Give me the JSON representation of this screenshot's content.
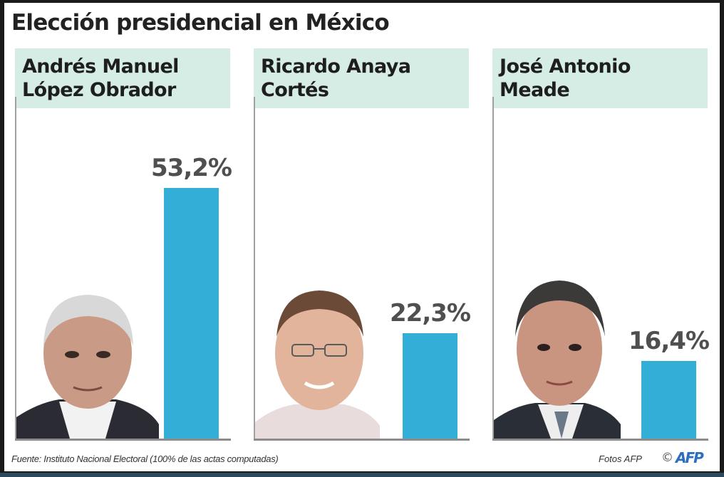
{
  "title": "Elección presidencial en México",
  "chart_data": {
    "type": "bar",
    "title": "Elección presidencial en México",
    "categories": [
      "Andrés Manuel López Obrador",
      "Ricardo Anaya Cortés",
      "José Antonio Meade"
    ],
    "values": [
      53.2,
      22.3,
      16.4
    ],
    "value_labels": [
      "53,2%",
      "22,3%",
      "16,4%"
    ],
    "unit": "%",
    "ylim": [
      0,
      100
    ],
    "grid": false,
    "bar_color": "#33aed6"
  },
  "candidates": [
    {
      "name_line1": "Andrés Manuel",
      "name_line2": "López Obrador",
      "value_label": "53,2%",
      "value": 53.2
    },
    {
      "name_line1": "Ricardo Anaya",
      "name_line2": "Cortés",
      "value_label": "22,3%",
      "value": 22.3
    },
    {
      "name_line1": "José Antonio",
      "name_line2": "Meade",
      "value_label": "16,4%",
      "value": 16.4
    }
  ],
  "footer": {
    "source": "Fuente: Instituto Nacional Electoral (100% de las actas computadas)",
    "photos": "Fotos AFP",
    "copyright": "©",
    "logo": "AFP"
  },
  "colors": {
    "bar": "#33aed6",
    "name_box": "#d6ede6",
    "value_text": "#4f4f4f",
    "logo": "#2a6fc0"
  }
}
